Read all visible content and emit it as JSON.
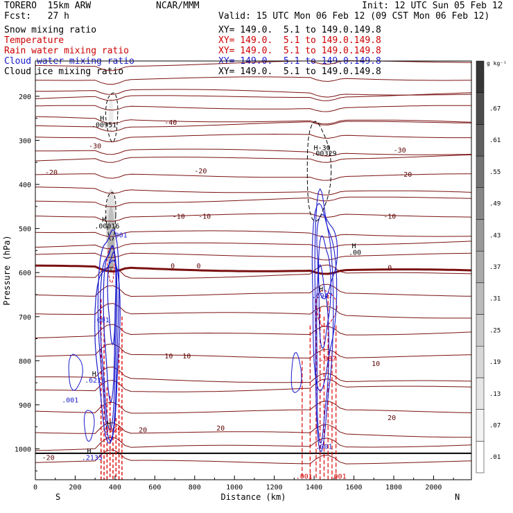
{
  "header": {
    "model": "TORERO  15km ARW",
    "center": "NCAR/MMM",
    "init": "Init: 12 UTC Sun 05 Feb 12",
    "fcst": "Fcst:   27 h",
    "valid": "Valid: 15 UTC Mon 06 Feb 12 (09 CST Mon 06 Feb 12)"
  },
  "fields": [
    {
      "label": "Snow mixing ratio",
      "color": "#000000",
      "xy": ""
    },
    {
      "label": "Temperature",
      "color": "#cc0000",
      "xy": "XY= 149.0.  5.1 to 149.0.149.8"
    },
    {
      "label": "Rain water mixing ratio",
      "color": "#cc0000",
      "xy": "XY= 149.0.  5.1 to 149.0.149.8"
    },
    {
      "label": "Cloud water mixing ratio",
      "color": "#1a1acc",
      "xy": "XY= 149.0.  5.1 to 149.0.149.8"
    },
    {
      "label": "Cloud ice mixing ratio",
      "color": "#000000",
      "xy": "XY= 149.0.  5.1 to 149.0.149.8"
    }
  ],
  "first_xy": "XY= 149.0.  5.1 to 149.0.149.8",
  "chart_data": {
    "type": "contour-cross-section",
    "xlabel": "Distance (km)",
    "ylabel": "Pressure (hPa)",
    "xlim": [
      0,
      2190
    ],
    "ylim": [
      1070,
      120
    ],
    "xticks": [
      0,
      200,
      400,
      600,
      800,
      1000,
      1200,
      1400,
      1600,
      1800,
      2000
    ],
    "yticks": [
      200,
      300,
      400,
      500,
      600,
      700,
      800,
      900,
      1000
    ],
    "x_end_labels": {
      "left": "S",
      "right": "N"
    },
    "colorbar": {
      "unit": "g kg⁻¹",
      "ticks": [
        ".01",
        ".07",
        ".13",
        ".19",
        ".25",
        ".31",
        ".37",
        ".43",
        ".49",
        ".55",
        ".61",
        ".67"
      ],
      "colors": [
        "#ffffff",
        "#f3f3f3",
        "#e6e6e6",
        "#d8d8d8",
        "#cacaca",
        "#bbbbbb",
        "#aaaaaa",
        "#999999",
        "#878787",
        "#747474",
        "#606060",
        "#4c4c4c",
        "#363636"
      ]
    },
    "temperature_contours": [
      {
        "level": -40,
        "pressure": 268
      },
      {
        "level": -30,
        "pressure": 320
      },
      {
        "level": -20,
        "pressure": 380
      },
      {
        "level": -10,
        "pressure": 470
      },
      {
        "level": 0,
        "pressure": 588
      },
      {
        "level": 10,
        "pressure": 745
      },
      {
        "level": 20,
        "pressure": 915
      }
    ],
    "labels": [
      {
        "text": "H",
        "x": 335,
        "p": 255,
        "color": "#000000"
      },
      {
        "text": ".00951",
        "x": 345,
        "p": 270,
        "color": "#000000"
      },
      {
        "text": "-40",
        "x": 680,
        "p": 265,
        "color": "#5a0000"
      },
      {
        "text": "-30",
        "x": 300,
        "p": 318,
        "color": "#5a0000"
      },
      {
        "text": "H-30",
        "x": 1440,
        "p": 322,
        "color": "#000000"
      },
      {
        "text": ".00329",
        "x": 1450,
        "p": 335,
        "color": "#000000"
      },
      {
        "text": "-30",
        "x": 1830,
        "p": 328,
        "color": "#5a0000"
      },
      {
        "text": "-20",
        "x": 80,
        "p": 378,
        "color": "#5a0000"
      },
      {
        "text": "-20",
        "x": 830,
        "p": 375,
        "color": "#5a0000"
      },
      {
        "text": "-20",
        "x": 1860,
        "p": 383,
        "color": "#5a0000"
      },
      {
        "text": "H",
        "x": 345,
        "p": 485,
        "color": "#000000"
      },
      {
        "text": ".00016",
        "x": 360,
        "p": 500,
        "color": "#000000"
      },
      {
        "text": ".001",
        "x": 420,
        "p": 520,
        "color": "#1a1acc"
      },
      {
        "text": "-10",
        "x": 720,
        "p": 478,
        "color": "#5a0000"
      },
      {
        "text": "-10",
        "x": 850,
        "p": 478,
        "color": "#5a0000"
      },
      {
        "text": "-10",
        "x": 1780,
        "p": 478,
        "color": "#5a0000"
      },
      {
        "text": "H",
        "x": 1600,
        "p": 545,
        "color": "#000000"
      },
      {
        "text": ".00",
        "x": 1605,
        "p": 560,
        "color": "#000000"
      },
      {
        "text": "0",
        "x": 690,
        "p": 590,
        "color": "#5a0000"
      },
      {
        "text": "0",
        "x": 820,
        "p": 590,
        "color": "#5a0000"
      },
      {
        "text": "0",
        "x": 1780,
        "p": 594,
        "color": "#5a0000"
      },
      {
        "text": "H",
        "x": 1435,
        "p": 643,
        "color": "#000000"
      },
      {
        "text": ".6947",
        "x": 1440,
        "p": 658,
        "color": "#1a1acc"
      },
      {
        "text": ".001",
        "x": 330,
        "p": 713,
        "color": "#1a1acc"
      },
      {
        "text": "10",
        "x": 670,
        "p": 795,
        "color": "#5a0000"
      },
      {
        "text": "10",
        "x": 760,
        "p": 795,
        "color": "#5a0000"
      },
      {
        "text": "10",
        "x": 1710,
        "p": 812,
        "color": "#5a0000"
      },
      {
        "text": "H",
        "x": 295,
        "p": 835,
        "color": "#000000"
      },
      {
        "text": ".6214",
        "x": 300,
        "p": 850,
        "color": "#1a1acc"
      },
      {
        "text": ".087",
        "x": 1470,
        "p": 800,
        "color": "#cc0000"
      },
      {
        "text": ".001",
        "x": 175,
        "p": 895,
        "color": "#1a1acc"
      },
      {
        "text": "H",
        "x": 370,
        "p": 948,
        "color": "#000000"
      },
      {
        "text": ".5929",
        "x": 380,
        "p": 962,
        "color": "#cc0000"
      },
      {
        "text": "20",
        "x": 540,
        "p": 962,
        "color": "#5a0000"
      },
      {
        "text": "20",
        "x": 930,
        "p": 958,
        "color": "#5a0000"
      },
      {
        "text": "20",
        "x": 1790,
        "p": 935,
        "color": "#5a0000"
      },
      {
        "text": "-20",
        "x": 65,
        "p": 1025,
        "color": "#5a0000"
      },
      {
        "text": "H",
        "x": 270,
        "p": 1010,
        "color": "#000000"
      },
      {
        "text": ".2135",
        "x": 285,
        "p": 1025,
        "color": "#1a1acc"
      },
      {
        "text": ".001",
        "x": 1450,
        "p": 1000,
        "color": "#1a1acc"
      },
      {
        "text": ".001",
        "x": 1350,
        "p": 1068,
        "color": "#cc0000"
      },
      {
        "text": ".001",
        "x": 1520,
        "p": 1068,
        "color": "#cc0000"
      }
    ]
  }
}
